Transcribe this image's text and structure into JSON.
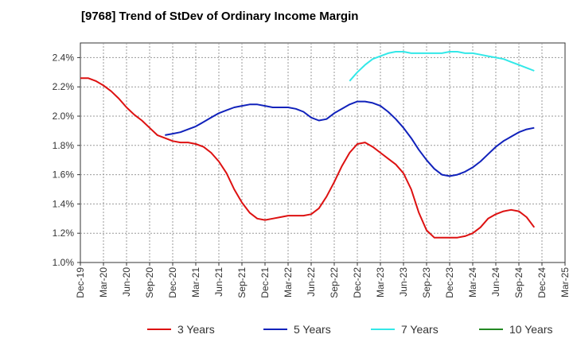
{
  "chart_data": {
    "type": "line",
    "title": "[9768]  Trend of StDev of Ordinary Income Margin",
    "xlabel": "",
    "ylabel": "",
    "x_ticks": [
      "Dec-19",
      "Mar-20",
      "Jun-20",
      "Sep-20",
      "Dec-20",
      "Mar-21",
      "Jun-21",
      "Sep-21",
      "Dec-21",
      "Mar-22",
      "Jun-22",
      "Sep-22",
      "Dec-22",
      "Mar-23",
      "Jun-23",
      "Sep-23",
      "Dec-23",
      "Mar-24",
      "Jun-24",
      "Sep-24",
      "Dec-24",
      "Mar-25"
    ],
    "y_ticks": [
      "1.0%",
      "1.2%",
      "1.4%",
      "1.6%",
      "1.8%",
      "2.0%",
      "2.2%",
      "2.4%"
    ],
    "ylim": [
      1.0,
      2.5
    ],
    "grid": true,
    "legend_position": "bottom",
    "series": [
      {
        "name": "3 Years",
        "color": "#dd1111",
        "values": [
          [
            "Dec-19",
            2.26
          ],
          [
            "Jan-20",
            2.26
          ],
          [
            "Feb-20",
            2.24
          ],
          [
            "Mar-20",
            2.21
          ],
          [
            "Apr-20",
            2.17
          ],
          [
            "May-20",
            2.12
          ],
          [
            "Jun-20",
            2.06
          ],
          [
            "Jul-20",
            2.01
          ],
          [
            "Aug-20",
            1.97
          ],
          [
            "Sep-20",
            1.92
          ],
          [
            "Oct-20",
            1.87
          ],
          [
            "Nov-20",
            1.85
          ],
          [
            "Dec-20",
            1.83
          ],
          [
            "Jan-21",
            1.82
          ],
          [
            "Feb-21",
            1.82
          ],
          [
            "Mar-21",
            1.81
          ],
          [
            "Apr-21",
            1.79
          ],
          [
            "May-21",
            1.75
          ],
          [
            "Jun-21",
            1.69
          ],
          [
            "Jul-21",
            1.61
          ],
          [
            "Aug-21",
            1.5
          ],
          [
            "Sep-21",
            1.41
          ],
          [
            "Oct-21",
            1.34
          ],
          [
            "Nov-21",
            1.3
          ],
          [
            "Dec-21",
            1.29
          ],
          [
            "Jan-22",
            1.3
          ],
          [
            "Feb-22",
            1.31
          ],
          [
            "Mar-22",
            1.32
          ],
          [
            "Apr-22",
            1.32
          ],
          [
            "May-22",
            1.32
          ],
          [
            "Jun-22",
            1.33
          ],
          [
            "Jul-22",
            1.37
          ],
          [
            "Aug-22",
            1.45
          ],
          [
            "Sep-22",
            1.55
          ],
          [
            "Oct-22",
            1.66
          ],
          [
            "Nov-22",
            1.75
          ],
          [
            "Dec-22",
            1.81
          ],
          [
            "Jan-23",
            1.82
          ],
          [
            "Feb-23",
            1.79
          ],
          [
            "Mar-23",
            1.75
          ],
          [
            "Apr-23",
            1.71
          ],
          [
            "May-23",
            1.67
          ],
          [
            "Jun-23",
            1.61
          ],
          [
            "Jul-23",
            1.5
          ],
          [
            "Aug-23",
            1.34
          ],
          [
            "Sep-23",
            1.22
          ],
          [
            "Oct-23",
            1.17
          ],
          [
            "Nov-23",
            1.17
          ],
          [
            "Dec-23",
            1.17
          ],
          [
            "Jan-24",
            1.17
          ],
          [
            "Feb-24",
            1.18
          ],
          [
            "Mar-24",
            1.2
          ],
          [
            "Apr-24",
            1.24
          ],
          [
            "May-24",
            1.3
          ],
          [
            "Jun-24",
            1.33
          ],
          [
            "Jul-24",
            1.35
          ],
          [
            "Aug-24",
            1.36
          ],
          [
            "Sep-24",
            1.35
          ],
          [
            "Oct-24",
            1.31
          ],
          [
            "Nov-24",
            1.24
          ]
        ]
      },
      {
        "name": "5 Years",
        "color": "#1122bb",
        "values": [
          [
            "Nov-20",
            1.87
          ],
          [
            "Dec-20",
            1.88
          ],
          [
            "Jan-21",
            1.89
          ],
          [
            "Feb-21",
            1.91
          ],
          [
            "Mar-21",
            1.93
          ],
          [
            "Apr-21",
            1.96
          ],
          [
            "May-21",
            1.99
          ],
          [
            "Jun-21",
            2.02
          ],
          [
            "Jul-21",
            2.04
          ],
          [
            "Aug-21",
            2.06
          ],
          [
            "Sep-21",
            2.07
          ],
          [
            "Oct-21",
            2.08
          ],
          [
            "Nov-21",
            2.08
          ],
          [
            "Dec-21",
            2.07
          ],
          [
            "Jan-22",
            2.06
          ],
          [
            "Feb-22",
            2.06
          ],
          [
            "Mar-22",
            2.06
          ],
          [
            "Apr-22",
            2.05
          ],
          [
            "May-22",
            2.03
          ],
          [
            "Jun-22",
            1.99
          ],
          [
            "Jul-22",
            1.97
          ],
          [
            "Aug-22",
            1.98
          ],
          [
            "Sep-22",
            2.02
          ],
          [
            "Oct-22",
            2.05
          ],
          [
            "Nov-22",
            2.08
          ],
          [
            "Dec-22",
            2.1
          ],
          [
            "Jan-23",
            2.1
          ],
          [
            "Feb-23",
            2.09
          ],
          [
            "Mar-23",
            2.07
          ],
          [
            "Apr-23",
            2.03
          ],
          [
            "May-23",
            1.98
          ],
          [
            "Jun-23",
            1.92
          ],
          [
            "Jul-23",
            1.85
          ],
          [
            "Aug-23",
            1.77
          ],
          [
            "Sep-23",
            1.7
          ],
          [
            "Oct-23",
            1.64
          ],
          [
            "Nov-23",
            1.6
          ],
          [
            "Dec-23",
            1.59
          ],
          [
            "Jan-24",
            1.6
          ],
          [
            "Feb-24",
            1.62
          ],
          [
            "Mar-24",
            1.65
          ],
          [
            "Apr-24",
            1.69
          ],
          [
            "May-24",
            1.74
          ],
          [
            "Jun-24",
            1.79
          ],
          [
            "Jul-24",
            1.83
          ],
          [
            "Aug-24",
            1.86
          ],
          [
            "Sep-24",
            1.89
          ],
          [
            "Oct-24",
            1.91
          ],
          [
            "Nov-24",
            1.92
          ]
        ]
      },
      {
        "name": "7 Years",
        "color": "#33e8e8",
        "values": [
          [
            "Nov-22",
            2.24
          ],
          [
            "Dec-22",
            2.3
          ],
          [
            "Jan-23",
            2.35
          ],
          [
            "Feb-23",
            2.39
          ],
          [
            "Mar-23",
            2.41
          ],
          [
            "Apr-23",
            2.43
          ],
          [
            "May-23",
            2.44
          ],
          [
            "Jun-23",
            2.44
          ],
          [
            "Jul-23",
            2.43
          ],
          [
            "Aug-23",
            2.43
          ],
          [
            "Sep-23",
            2.43
          ],
          [
            "Oct-23",
            2.43
          ],
          [
            "Nov-23",
            2.43
          ],
          [
            "Dec-23",
            2.44
          ],
          [
            "Jan-24",
            2.44
          ],
          [
            "Feb-24",
            2.43
          ],
          [
            "Mar-24",
            2.43
          ],
          [
            "Apr-24",
            2.42
          ],
          [
            "May-24",
            2.41
          ],
          [
            "Jun-24",
            2.4
          ],
          [
            "Jul-24",
            2.39
          ],
          [
            "Aug-24",
            2.37
          ],
          [
            "Sep-24",
            2.35
          ],
          [
            "Oct-24",
            2.33
          ],
          [
            "Nov-24",
            2.31
          ]
        ]
      },
      {
        "name": "10 Years",
        "color": "#228822",
        "values": []
      }
    ]
  }
}
